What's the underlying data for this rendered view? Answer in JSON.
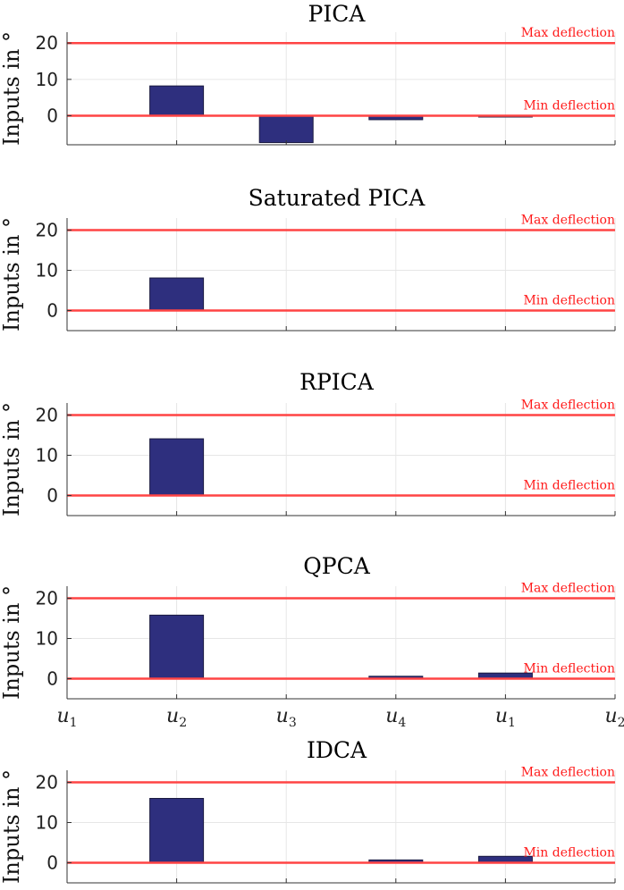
{
  "chart_data": [
    {
      "type": "bar",
      "title": "PICA",
      "ylabel": "Inputs in °",
      "categories": [
        "u1",
        "u2",
        "u3",
        "u4",
        "u1",
        "u2"
      ],
      "values": [
        0,
        8.2,
        -7.4,
        -1.1,
        -0.2,
        0
      ],
      "ylim": [
        -8,
        23
      ],
      "yticks": [
        0,
        10,
        20
      ],
      "show_xticklabels": false,
      "lines": [
        {
          "label": "Max deflection",
          "y": 20,
          "color": "#ff4444"
        },
        {
          "label": "Min deflection",
          "y": 0,
          "color": "#ff4444"
        }
      ]
    },
    {
      "type": "bar",
      "title": "Saturated PICA",
      "ylabel": "Inputs in °",
      "categories": [
        "u1",
        "u2",
        "u3",
        "u4",
        "u1",
        "u2"
      ],
      "values": [
        0,
        8.1,
        0,
        0,
        0,
        0
      ],
      "ylim": [
        -5,
        23
      ],
      "yticks": [
        0,
        10,
        20
      ],
      "show_xticklabels": false,
      "lines": [
        {
          "label": "Max deflection",
          "y": 20,
          "color": "#ff4444"
        },
        {
          "label": "Min deflection",
          "y": 0,
          "color": "#ff4444"
        }
      ]
    },
    {
      "type": "bar",
      "title": "RPICA",
      "ylabel": "Inputs in °",
      "categories": [
        "u1",
        "u2",
        "u3",
        "u4",
        "u1",
        "u2"
      ],
      "values": [
        0,
        14.1,
        0,
        0,
        0,
        0
      ],
      "ylim": [
        -5,
        23
      ],
      "yticks": [
        0,
        10,
        20
      ],
      "show_xticklabels": false,
      "lines": [
        {
          "label": "Max deflection",
          "y": 20,
          "color": "#ff4444"
        },
        {
          "label": "Min deflection",
          "y": 0,
          "color": "#ff4444"
        }
      ]
    },
    {
      "type": "bar",
      "title": "QPCA",
      "ylabel": "Inputs in °",
      "categories": [
        "u1",
        "u2",
        "u3",
        "u4",
        "u1",
        "u2"
      ],
      "values": [
        0,
        15.8,
        0,
        0.6,
        1.4,
        0
      ],
      "ylim": [
        -5,
        23
      ],
      "yticks": [
        0,
        10,
        20
      ],
      "show_xticklabels": true,
      "lines": [
        {
          "label": "Max deflection",
          "y": 20,
          "color": "#ff4444"
        },
        {
          "label": "Min deflection",
          "y": 0,
          "color": "#ff4444"
        }
      ]
    },
    {
      "type": "bar",
      "title": "IDCA",
      "ylabel": "Inputs in °",
      "categories": [
        "u1",
        "u2",
        "u3",
        "u4",
        "u1",
        "u2"
      ],
      "values": [
        0,
        16.0,
        0,
        0.7,
        1.6,
        0
      ],
      "ylim": [
        -5,
        23
      ],
      "yticks": [
        0,
        10,
        20
      ],
      "show_xticklabels": false,
      "lines": [
        {
          "label": "Max deflection",
          "y": 20,
          "color": "#ff4444"
        },
        {
          "label": "Min deflection",
          "y": 0,
          "color": "#ff4444"
        }
      ]
    }
  ]
}
